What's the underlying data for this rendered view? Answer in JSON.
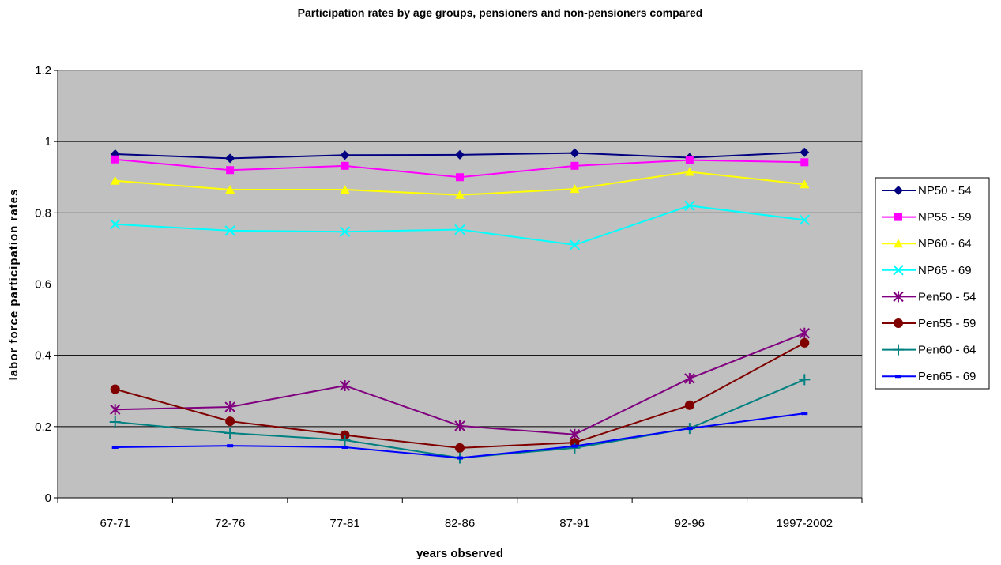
{
  "chart_data": {
    "type": "line",
    "title": "Participation rates by age groups, pensioners and non-pensioners compared",
    "xlabel": "years observed",
    "ylabel": "labor force participation rates",
    "categories": [
      "67-71",
      "72-76",
      "77-81",
      "82-86",
      "87-91",
      "92-96",
      "1997-2002"
    ],
    "ylim": [
      0,
      1.2
    ],
    "yticks": [
      "0",
      "0.2",
      "0.4",
      "0.6",
      "0.8",
      "1",
      "1.2"
    ],
    "grid": true,
    "legend_position": "right",
    "plot_background": "#c0c0c0",
    "series": [
      {
        "name": "NP50 - 54",
        "color": "#000080",
        "marker": "diamond",
        "values": [
          0.965,
          0.953,
          0.962,
          0.963,
          0.968,
          0.955,
          0.97
        ]
      },
      {
        "name": "NP55 - 59",
        "color": "#ff00ff",
        "marker": "square",
        "values": [
          0.95,
          0.92,
          0.932,
          0.9,
          0.932,
          0.948,
          0.942
        ]
      },
      {
        "name": "NP60 - 64",
        "color": "#ffff00",
        "marker": "triangle",
        "values": [
          0.89,
          0.865,
          0.865,
          0.85,
          0.867,
          0.915,
          0.88
        ]
      },
      {
        "name": "NP65 - 69",
        "color": "#00ffff",
        "marker": "x",
        "values": [
          0.768,
          0.75,
          0.747,
          0.753,
          0.71,
          0.82,
          0.78
        ]
      },
      {
        "name": "Pen50 - 54",
        "color": "#800080",
        "marker": "asterisk",
        "values": [
          0.248,
          0.255,
          0.315,
          0.202,
          0.178,
          0.335,
          0.462
        ]
      },
      {
        "name": "Pen55 - 59",
        "color": "#800000",
        "marker": "circle",
        "values": [
          0.305,
          0.215,
          0.176,
          0.14,
          0.155,
          0.26,
          0.435
        ]
      },
      {
        "name": "Pen60 - 64",
        "color": "#008080",
        "marker": "plus",
        "values": [
          0.213,
          0.182,
          0.162,
          0.112,
          0.14,
          0.195,
          0.332
        ]
      },
      {
        "name": "Pen65 - 69",
        "color": "#0000ff",
        "marker": "dash",
        "values": [
          0.142,
          0.146,
          0.142,
          0.112,
          0.145,
          0.195,
          0.237
        ]
      }
    ]
  }
}
